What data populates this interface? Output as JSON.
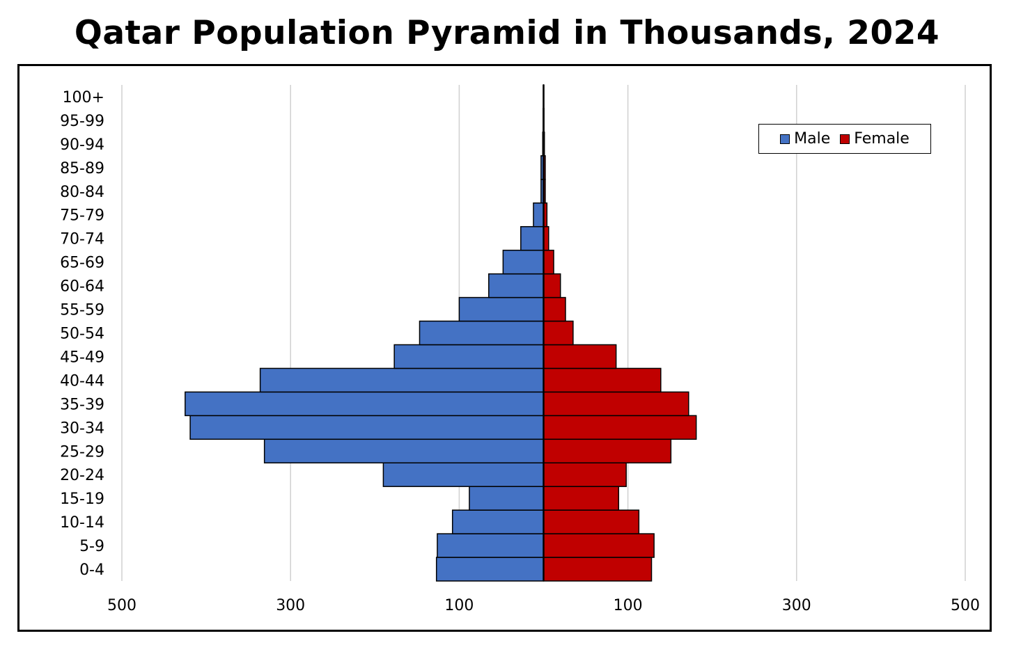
{
  "chart_data": {
    "type": "bar",
    "orientation": "horizontal",
    "stacked_diverging": true,
    "title": "Qatar Population Pyramid in Thousands, 2024",
    "categories": [
      "0-4",
      "5-9",
      "10-14",
      "15-19",
      "20-24",
      "25-29",
      "30-34",
      "35-39",
      "40-44",
      "45-49",
      "50-54",
      "55-59",
      "60-64",
      "65-69",
      "70-74",
      "75-79",
      "80-84",
      "85-89",
      "90-94",
      "95-99",
      "100+"
    ],
    "series": [
      {
        "name": "Male",
        "color": "#4472C4",
        "side": "left",
        "values": [
          127,
          126,
          108,
          88,
          190,
          331,
          419,
          425,
          336,
          177,
          147,
          100,
          65,
          48,
          27,
          12,
          3,
          3,
          1,
          0.5,
          0.3
        ]
      },
      {
        "name": "Female",
        "color": "#C00000",
        "side": "right",
        "values": [
          128,
          131,
          113,
          89,
          98,
          151,
          181,
          172,
          139,
          86,
          35,
          26,
          20,
          12,
          6,
          4,
          2,
          2,
          1,
          0.5,
          0.3
        ]
      }
    ],
    "x_ticks": [
      {
        "value": -500,
        "label": "500"
      },
      {
        "value": -300,
        "label": "300"
      },
      {
        "value": -100,
        "label": "100"
      },
      {
        "value": 100,
        "label": "100"
      },
      {
        "value": 300,
        "label": "300"
      },
      {
        "value": 500,
        "label": "500"
      }
    ],
    "xlim": [
      -500,
      500
    ],
    "grid": true,
    "legend_position": "top-right"
  }
}
